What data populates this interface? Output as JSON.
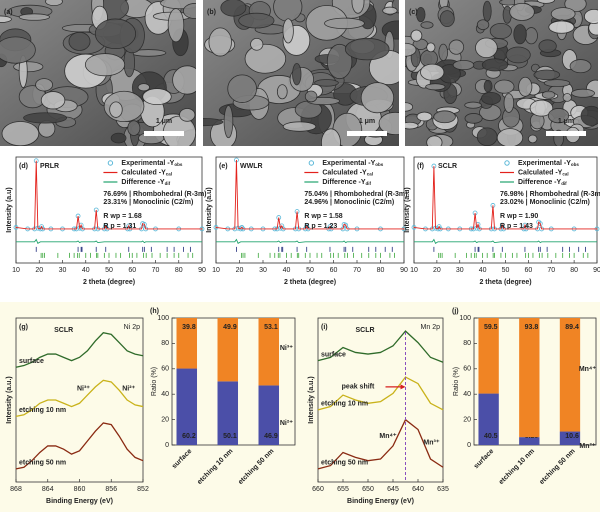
{
  "sem_images": [
    {
      "label": "(a)",
      "scale_bar": "1 μm"
    },
    {
      "label": "(b)",
      "scale_bar": "1 μm"
    },
    {
      "label": "(c)",
      "scale_bar": "1 μm"
    }
  ],
  "chart_data": [
    {
      "type": "line",
      "panel": "(d)",
      "title": "PRLR",
      "title_color": "#1f2a7a",
      "xlabel": "2 theta (degree)",
      "ylabel": "Intensity (a.u)",
      "xlim": [
        10,
        90
      ],
      "xticks": [
        10,
        20,
        30,
        40,
        50,
        60,
        70,
        80,
        90
      ],
      "ylim": [
        -40,
        100
      ],
      "legend": "upper right",
      "x": [
        10,
        15,
        18,
        18.7,
        19.4,
        20.5,
        21,
        21.5,
        25,
        30,
        35,
        36,
        36.7,
        37.4,
        38,
        38.6,
        43.8,
        44.5,
        45.2,
        48,
        48.6,
        49.2,
        58,
        58.5,
        59,
        64,
        64.5,
        65.2,
        65.8,
        70,
        80,
        90
      ],
      "series": [
        {
          "name": "Experimental -Y",
          "subscript": "obs",
          "color": "#5bb8d8",
          "marker": "circle",
          "values": [
            7,
            5,
            5,
            95,
            6,
            5,
            8,
            5,
            5,
            5,
            5,
            5,
            22,
            6,
            10,
            5,
            5,
            30,
            5,
            5,
            9,
            5,
            5,
            9,
            5,
            5,
            12,
            11,
            5,
            5,
            5,
            5
          ]
        },
        {
          "name": "Calculated -Y",
          "subscript": "cal",
          "color": "#e3221c",
          "values": [
            7,
            5,
            5,
            95,
            6,
            5,
            8,
            5,
            5,
            5,
            5,
            5,
            22,
            6,
            10,
            5,
            5,
            30,
            5,
            5,
            9,
            5,
            5,
            9,
            5,
            5,
            12,
            11,
            5,
            5,
            5,
            5
          ]
        },
        {
          "name": "Difference -Y",
          "subscript": "dif",
          "color": "#22a36f",
          "values": [
            -12,
            -12,
            -12,
            -9,
            -14,
            -12,
            -12,
            -12,
            -12,
            -12,
            -12,
            -12,
            -11,
            -13,
            -12,
            -12,
            -12,
            -11,
            -13,
            -12,
            -12,
            -12,
            -12,
            -12,
            -12,
            -12,
            -11,
            -13,
            -12,
            -12,
            -12,
            -12
          ]
        }
      ],
      "phases": [
        {
          "label": "76.69% | Rhombohedral (R-3m)",
          "color": "#1f2a7a",
          "positions": [
            18.7,
            36.7,
            38,
            38.4,
            44.5,
            48.6,
            58.5,
            64.5,
            65.2,
            68.2,
            75,
            78,
            82,
            85
          ]
        },
        {
          "label": "23.31% | Monoclinic (C2/m)",
          "color": "#3aa63a",
          "positions": [
            20.8,
            21.5,
            22.3,
            28,
            33,
            35,
            36.5,
            37.2,
            40,
            42,
            44.6,
            45.2,
            48,
            50,
            53,
            55,
            58.8,
            60,
            62,
            64.8,
            66,
            68.5,
            72,
            75,
            78,
            80,
            84,
            86
          ]
        }
      ],
      "annotations": [
        {
          "text": "R wp = 1.68"
        },
        {
          "text": "R p = 1.31"
        }
      ]
    },
    {
      "type": "line",
      "panel": "(e)",
      "title": "WWLR",
      "title_color": "#2bb3a0",
      "xlabel": "2 theta (degree)",
      "ylabel": "Intensity (a.u)",
      "xlim": [
        10,
        90
      ],
      "xticks": [
        10,
        20,
        30,
        40,
        50,
        60,
        70,
        80,
        90
      ],
      "ylim": [
        -40,
        100
      ],
      "legend": "upper right",
      "x": [
        10,
        15,
        18,
        18.7,
        19.4,
        20.5,
        21,
        21.5,
        25,
        30,
        35,
        36,
        36.7,
        37.4,
        38,
        38.6,
        43.8,
        44.5,
        45.2,
        48,
        48.6,
        49.2,
        58,
        58.5,
        59,
        64,
        64.5,
        65.2,
        65.8,
        70,
        80,
        90
      ],
      "series": [
        {
          "name": "Experimental -Y",
          "subscript": "obs",
          "color": "#5bb8d8",
          "marker": "circle",
          "values": [
            7,
            5,
            5,
            96,
            6,
            5,
            7,
            5,
            5,
            5,
            5,
            5,
            20,
            6,
            9,
            5,
            5,
            28,
            5,
            5,
            8,
            5,
            5,
            8,
            5,
            5,
            11,
            10,
            5,
            5,
            5,
            5
          ]
        },
        {
          "name": "Calculated -Y",
          "subscript": "cal",
          "color": "#e3221c",
          "values": [
            7,
            5,
            5,
            96,
            6,
            5,
            7,
            5,
            5,
            5,
            5,
            5,
            20,
            6,
            9,
            5,
            5,
            28,
            5,
            5,
            8,
            5,
            5,
            8,
            5,
            5,
            11,
            10,
            5,
            5,
            5,
            5
          ]
        },
        {
          "name": "Difference -Y",
          "subscript": "dif",
          "color": "#22a36f",
          "values": [
            -12,
            -12,
            -12,
            -9,
            -14,
            -12,
            -12,
            -12,
            -12,
            -12,
            -12,
            -12,
            -11,
            -13,
            -12,
            -12,
            -12,
            -11,
            -13,
            -12,
            -12,
            -12,
            -12,
            -12,
            -12,
            -12,
            -11,
            -13,
            -12,
            -12,
            -12,
            -12
          ]
        }
      ],
      "phases": [
        {
          "label": "75.04% | Rhombohedral (R-3m)",
          "color": "#1f2a7a",
          "positions": [
            18.7,
            36.7,
            38,
            38.4,
            44.5,
            48.6,
            58.5,
            64.5,
            65.2,
            68.2,
            75,
            78,
            82,
            85
          ]
        },
        {
          "label": "24.96% | Monoclinic (C2/m)",
          "color": "#3aa63a",
          "positions": [
            20.8,
            21.5,
            22.3,
            28,
            33,
            35,
            36.5,
            37.2,
            40,
            42,
            44.6,
            45.2,
            48,
            50,
            53,
            55,
            58.8,
            60,
            62,
            64.8,
            66,
            68.5,
            72,
            75,
            78,
            80,
            84,
            86
          ]
        }
      ],
      "annotations": [
        {
          "text": "R wp = 1.58"
        },
        {
          "text": "R p = 1.23"
        }
      ]
    },
    {
      "type": "line",
      "panel": "(f)",
      "title": "SCLR",
      "title_color": "#e8734a",
      "xlabel": "2 theta (degree)",
      "ylabel": "Intensity (a.u)",
      "xlim": [
        10,
        90
      ],
      "xticks": [
        10,
        20,
        30,
        40,
        50,
        60,
        70,
        80,
        90
      ],
      "ylim": [
        -40,
        100
      ],
      "legend": "upper right",
      "x": [
        10,
        15,
        18,
        18.7,
        19.4,
        20.5,
        21,
        21.5,
        25,
        30,
        35,
        36,
        36.7,
        37.4,
        38,
        38.6,
        43.8,
        44.5,
        45.2,
        48,
        48.6,
        49.2,
        58,
        58.5,
        59,
        64,
        64.5,
        65.2,
        65.8,
        70,
        80,
        90
      ],
      "series": [
        {
          "name": "Experimental -Y",
          "subscript": "obs",
          "color": "#5bb8d8",
          "marker": "circle",
          "values": [
            7,
            5,
            5,
            88,
            6,
            5,
            8,
            5,
            5,
            5,
            5,
            5,
            26,
            6,
            11,
            5,
            5,
            36,
            5,
            5,
            10,
            5,
            5,
            10,
            5,
            5,
            14,
            12,
            5,
            5,
            5,
            5
          ]
        },
        {
          "name": "Calculated -Y",
          "subscript": "cal",
          "color": "#e3221c",
          "values": [
            7,
            5,
            5,
            88,
            6,
            5,
            8,
            5,
            5,
            5,
            5,
            5,
            26,
            6,
            11,
            5,
            5,
            36,
            5,
            5,
            10,
            5,
            5,
            10,
            5,
            5,
            14,
            12,
            5,
            5,
            5,
            5
          ]
        },
        {
          "name": "Difference -Y",
          "subscript": "dif",
          "color": "#22a36f",
          "values": [
            -12,
            -12,
            -12,
            -9,
            -14,
            -12,
            -12,
            -12,
            -12,
            -12,
            -12,
            -12,
            -11,
            -13,
            -12,
            -12,
            -12,
            -11,
            -13,
            -12,
            -12,
            -12,
            -12,
            -12,
            -12,
            -12,
            -11,
            -13,
            -12,
            -12,
            -12,
            -12
          ]
        }
      ],
      "phases": [
        {
          "label": "76.98% | Rhombohedral (R-3m)",
          "color": "#1f2a7a",
          "positions": [
            18.7,
            36.7,
            38,
            38.4,
            44.5,
            48.6,
            58.5,
            64.5,
            65.2,
            68.2,
            75,
            78,
            82,
            85
          ]
        },
        {
          "label": "23.02% | Monoclinic (C2/m)",
          "color": "#3aa63a",
          "positions": [
            20.8,
            21.5,
            22.3,
            28,
            33,
            35,
            36.5,
            37.2,
            40,
            42,
            44.6,
            45.2,
            48,
            50,
            53,
            55,
            58.8,
            60,
            62,
            64.8,
            66,
            68.5,
            72,
            75,
            78,
            80,
            84,
            86
          ]
        }
      ],
      "annotations": [
        {
          "text": "R wp = 1.90"
        },
        {
          "text": "R p = 1.43"
        }
      ]
    },
    {
      "type": "line",
      "panel": "(g)",
      "title": "SCLR",
      "title_color": "#e8734a",
      "subtitle": "Ni 2p",
      "xlabel": "Binding Energy (eV)",
      "ylabel": "Intensity (a.u.)",
      "xlim": [
        868,
        852
      ],
      "xticks": [
        868,
        864,
        860,
        856,
        852
      ],
      "ylim": [
        0,
        100
      ],
      "legend": "inline",
      "x": [
        868,
        867,
        866,
        865,
        864,
        863,
        862,
        861,
        860,
        859,
        858,
        857,
        856,
        855,
        854,
        853,
        852
      ],
      "series": [
        {
          "name": "surface",
          "color": "#2f6b2a",
          "values": [
            70,
            71,
            73,
            76,
            78,
            78,
            76,
            74,
            76,
            80,
            86,
            91,
            90,
            85,
            80,
            78,
            77
          ]
        },
        {
          "name": "etching 10 nm",
          "color": "#c9b21a",
          "values": [
            40,
            41,
            44,
            48,
            50,
            50,
            48,
            46,
            48,
            53,
            58,
            62,
            61,
            56,
            50,
            47,
            46
          ]
        },
        {
          "name": "etching 50 nm",
          "color": "#8a2a12",
          "values": [
            8,
            9,
            13,
            18,
            22,
            22,
            20,
            17,
            19,
            25,
            31,
            36,
            35,
            28,
            20,
            15,
            13
          ]
        }
      ],
      "annotations": [
        {
          "text": "Ni³⁺",
          "color": "#e8821e"
        },
        {
          "text": "Ni²⁺",
          "color": "#4a4aa8"
        }
      ]
    },
    {
      "type": "bar",
      "stacked": true,
      "panel": "(h)",
      "ylabel": "Ratio (%)",
      "categories": [
        "surface",
        "etching 10 nm",
        "etching 50 nm"
      ],
      "ylim": [
        0,
        100
      ],
      "yticks": [
        0,
        20,
        40,
        60,
        80,
        100
      ],
      "series": [
        {
          "name": "Ni²⁺",
          "color": "#4b4fa8",
          "values": [
            60.2,
            50.1,
            46.9
          ]
        },
        {
          "name": "Ni³⁺",
          "color": "#f08424",
          "values": [
            39.8,
            49.9,
            53.1
          ]
        }
      ]
    },
    {
      "type": "line",
      "panel": "(i)",
      "title": "SCLR",
      "title_color": "#e8734a",
      "subtitle": "Mn 2p",
      "xlabel": "Binding Energy (eV)",
      "ylabel": "Intensity (a.u.)",
      "xlim": [
        660,
        635
      ],
      "xticks": [
        660,
        655,
        650,
        645,
        640,
        635
      ],
      "ylim": [
        0,
        100
      ],
      "legend": "inline",
      "x": [
        660,
        657.5,
        655,
        652.5,
        650,
        647.5,
        645,
        642.5,
        640,
        637.5,
        635
      ],
      "series": [
        {
          "name": "surface",
          "color": "#2f6b2a",
          "values": [
            74,
            76,
            82,
            79,
            78,
            79,
            83,
            92,
            85,
            76,
            73
          ]
        },
        {
          "name": "etching 10 nm",
          "color": "#c9b21a",
          "values": [
            44,
            46,
            53,
            50,
            48,
            49,
            54,
            64,
            60,
            48,
            44
          ]
        },
        {
          "name": "etching 50 nm",
          "color": "#8a2a12",
          "values": [
            8,
            10,
            18,
            15,
            13,
            14,
            22,
            38,
            32,
            14,
            9
          ]
        }
      ],
      "annotations": [
        {
          "text": "peak shift",
          "color": "#d61f1f"
        },
        {
          "text": "Mn⁴⁺",
          "color": "#e8821e"
        },
        {
          "text": "Mn³⁺",
          "color": "#4a4aa8"
        }
      ]
    },
    {
      "type": "bar",
      "stacked": true,
      "panel": "(j)",
      "ylabel": "Ratio (%)",
      "categories": [
        "surface",
        "etching 10 nm",
        "etching 50 nm"
      ],
      "ylim": [
        0,
        100
      ],
      "yticks": [
        0,
        20,
        40,
        60,
        80,
        100
      ],
      "series": [
        {
          "name": "Mn³⁺",
          "color": "#4b4fa8",
          "values": [
            40.5,
            6.2,
            10.6
          ],
          "value_labels": [
            "40.5",
            "6.20",
            "10.6"
          ]
        },
        {
          "name": "Mn⁴⁺",
          "color": "#f08424",
          "values": [
            59.5,
            93.8,
            89.4
          ]
        }
      ]
    }
  ]
}
